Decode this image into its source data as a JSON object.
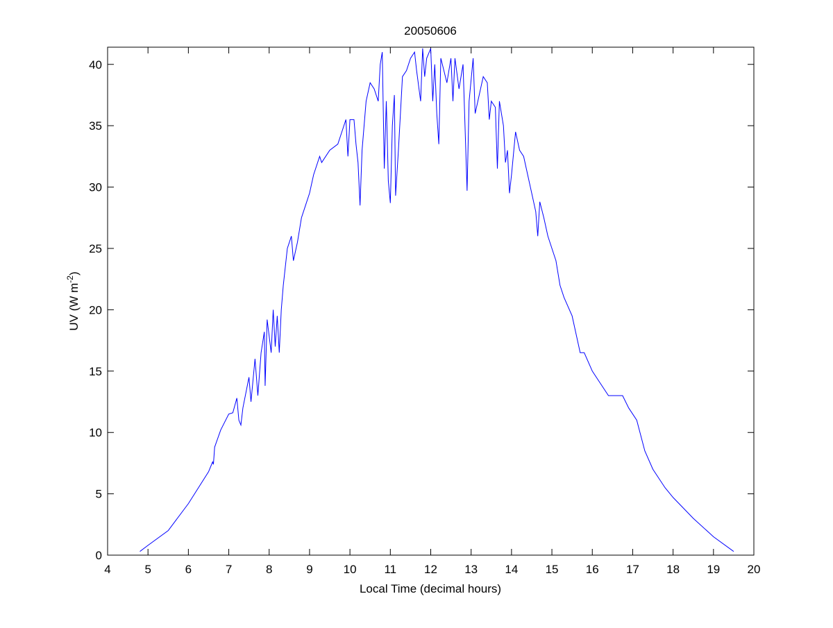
{
  "chart_data": {
    "type": "line",
    "title": "20050606",
    "xlabel": "Local Time (decimal hours)",
    "ylabel_parts": [
      "UV (W m",
      "-2",
      ")"
    ],
    "x": [
      4.8,
      5.0,
      5.5,
      6.0,
      6.5,
      6.6,
      6.62,
      6.65,
      6.8,
      7.0,
      7.1,
      7.2,
      7.25,
      7.3,
      7.35,
      7.5,
      7.55,
      7.65,
      7.72,
      7.8,
      7.88,
      7.9,
      7.95,
      8.05,
      8.1,
      8.15,
      8.2,
      8.25,
      8.3,
      8.35,
      8.45,
      8.55,
      8.6,
      8.7,
      8.8,
      8.9,
      9.0,
      9.1,
      9.25,
      9.3,
      9.5,
      9.7,
      9.8,
      9.9,
      9.95,
      10.0,
      10.1,
      10.15,
      10.2,
      10.25,
      10.3,
      10.4,
      10.5,
      10.6,
      10.7,
      10.75,
      10.8,
      10.85,
      10.9,
      10.95,
      11.0,
      11.05,
      11.1,
      11.13,
      11.2,
      11.3,
      11.4,
      11.5,
      11.6,
      11.65,
      11.75,
      11.8,
      11.85,
      11.9,
      12.0,
      12.05,
      12.1,
      12.15,
      12.2,
      12.25,
      12.4,
      12.5,
      12.55,
      12.6,
      12.7,
      12.8,
      12.9,
      12.95,
      13.05,
      13.1,
      13.2,
      13.3,
      13.4,
      13.45,
      13.5,
      13.6,
      13.65,
      13.7,
      13.8,
      13.85,
      13.9,
      13.95,
      14.0,
      14.1,
      14.2,
      14.3,
      14.4,
      14.5,
      14.6,
      14.65,
      14.7,
      14.8,
      14.9,
      15.0,
      15.1,
      15.2,
      15.3,
      15.5,
      15.6,
      15.7,
      15.8,
      16.0,
      16.2,
      16.4,
      16.6,
      16.75,
      16.9,
      17.1,
      17.3,
      17.5,
      17.8,
      18.0,
      18.5,
      19.0,
      19.5
    ],
    "series": [
      {
        "color": "#0000ff",
        "values": [
          0.3,
          0.8,
          2.0,
          4.2,
          6.8,
          7.6,
          7.4,
          8.8,
          10.2,
          11.5,
          11.6,
          12.8,
          11,
          10.6,
          12,
          14.5,
          12.5,
          16,
          13,
          16.5,
          18.2,
          13.8,
          19.2,
          16.5,
          20,
          17,
          19.5,
          16.5,
          20,
          22,
          25,
          26,
          24,
          25.5,
          27.5,
          28.5,
          29.5,
          31,
          32.5,
          32,
          33,
          33.5,
          34.5,
          35.5,
          32.5,
          35.5,
          35.5,
          33.5,
          32,
          28.5,
          33,
          37,
          38.5,
          38,
          37,
          40,
          41,
          31.5,
          37,
          30.5,
          28.7,
          35,
          37.5,
          29.3,
          33,
          39,
          39.5,
          40.5,
          41,
          39.5,
          37,
          41.3,
          39,
          40.5,
          41.3,
          37,
          40,
          36,
          33.5,
          40.5,
          38.5,
          40.5,
          37,
          40.5,
          38,
          40,
          29.7,
          37,
          40.5,
          36,
          37.5,
          39,
          38.5,
          35.5,
          37,
          36.5,
          31.5,
          37,
          35,
          32,
          33,
          29.5,
          31,
          34.5,
          33,
          32.5,
          31,
          29.5,
          28,
          26,
          28.8,
          27.5,
          26,
          25,
          24,
          22,
          21,
          19.5,
          18,
          16.5,
          16.5,
          15,
          14,
          13,
          13,
          13,
          12,
          11,
          8.5,
          7,
          5.5,
          4.7,
          3,
          1.5,
          0.3
        ]
      }
    ],
    "xlim": [
      4,
      20
    ],
    "xticks": [
      4,
      5,
      6,
      7,
      8,
      9,
      10,
      11,
      12,
      13,
      14,
      15,
      16,
      17,
      18,
      19,
      20
    ],
    "ylim": [
      0,
      41.4
    ],
    "yticks": [
      0,
      5,
      10,
      15,
      20,
      25,
      30,
      35,
      40
    ],
    "grid": false
  }
}
